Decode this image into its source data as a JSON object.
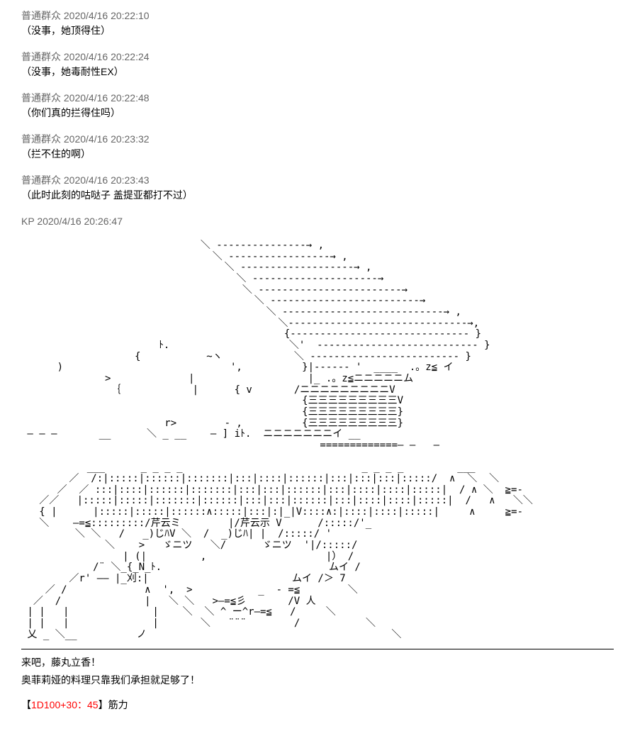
{
  "messages": [
    {
      "user": "普通群众",
      "time": "2020/4/16 20:22:10",
      "text": "（没事，她顶得住）"
    },
    {
      "user": "普通群众",
      "time": "2020/4/16 20:22:24",
      "text": "（没事，她毒耐性EX）"
    },
    {
      "user": "普通群众",
      "time": "2020/4/16 20:22:48",
      "text": "（你们真的拦得住吗）"
    },
    {
      "user": "普通群众",
      "time": "2020/4/16 20:23:32",
      "text": "（拦不住的啊）"
    },
    {
      "user": "普通群众",
      "time": "2020/4/16 20:23:43",
      "text": "（此时此刻的咕哒子 盖提亚都打不过）"
    }
  ],
  "kp": {
    "user": "KP",
    "time": "2020/4/16 20:26:47"
  },
  "ascii_art": "                              ＼ ---------------→ ,\n                                ＼ -----------------→ ,\n                                  ＼ -------------------→ ,\n                                    ＼ ---------------------→\n                                     ＼ ------------------------→\n                                       ＼ -------------------------→\n                                         ＼ ---------------------------→ ,\n                                           ＼------------------------------→,\n                                            {------------------------------ }\n                       ﾄ.                    ＼'  --------------------------- }\n                   {           ~ヽ            ＼ ------------------------- }\n      )                            ',          }|------ '  ____  .。z≦ イ\n              >             |                   |_ .。z≦ニニニニニム\n               ｛            |      { v       /ニニニニニニニニニV\n                                               {三三三三三三三三三V\n                                               {三三三三三三三三三}\n                        r>        - ,          {三三三三三三三三三}\n ― ― ―       __      ＼ _ __    ― ] iﾄ.  ニニニニニニニイ __\n                                                  =============― ―   ―\n\n           ___      _ _ _ _                              _ _ _ _         ___\n        ／  /:|:::::|::::::|:::::::|:::|::::|::::::|:::|:::|:::|:::::/  ∧  ＼  ＼\n      ／  ／ :::|::::|::::::|:::::::|:::|:::|::::::|:::|::::|::::|:::::|  / ∧ ＼  ≧=-\n   ／／   |:::::|:::::|:::::::|::::::|:::|:::|::::::|:::|::::|::::|:::::|  /   ∧   ＼＼\n   { |      |:::::|:::::|::::::∧:::::|:::|:|_|V::::∧:|::::|::::|:::::|     ∧     ≧=-\n   ＼    ―=≦:::::::::/芹云ミ        |/芹云示 V      /:::::/'_\n         ＼ ＼   /   _)じﾊV ＼  /  _)じﾊ| |  /:::::/ '\n              ＼    >   ゞニツ   ＼/      ゞニツ  '|/:::::/\n                 | (|         ,                    |） /\n            /¨ ＼_{_N_ﾄ.                            ムイ /\n        ／r' ―― |_刈:|                        ムイ /＞ 7\n    ／ /             ∧  ',  >           _  - =≦        ＼\n  ／  /              |   ＼ ＼   >―=≦彡       /V 人\n | |   |              |    ＼  ＼ ^ ー^r―=≦   /     ＼\n | |   |              |       ＼   ¨¨¨        /           ＼\n 乂 _ ＼__          ノ                                         ＼",
  "narration": {
    "line1": "来吧，藤丸立香！",
    "line2": "奥菲莉娅的料理只靠我们承担就足够了！"
  },
  "roll": {
    "open": "【",
    "formula": "1D100+30：45",
    "close": "】",
    "label": "筋力"
  },
  "colors": {
    "background": "#ffffff",
    "text": "#000000",
    "header": "#666666",
    "red": "#ff0000"
  }
}
